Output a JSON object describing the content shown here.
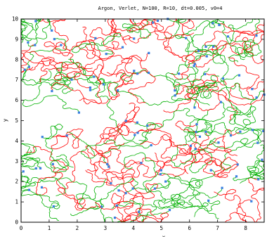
{
  "chart_data": {
    "type": "line",
    "title": "Argon, Verlet, N=100, R=10, dt=0.005, v0=4",
    "xlabel": "x",
    "ylabel": "y",
    "xlim": [
      0,
      8.66
    ],
    "ylim": [
      0,
      10
    ],
    "xticks": [
      "0",
      "1",
      "2",
      "3",
      "4",
      "5",
      "6",
      "7",
      "8"
    ],
    "yticks": [
      "0",
      "1",
      "2",
      "3",
      "4",
      "5",
      "6",
      "7",
      "8",
      "9",
      "10"
    ],
    "grid": false,
    "series": [
      {
        "color": "#ff0000",
        "style": "random-walk trajectories"
      },
      {
        "color": "#00b000",
        "style": "random-walk trajectories"
      },
      {
        "color": "#3a7fe0",
        "style": "particle markers"
      }
    ],
    "particle_count": 100
  }
}
